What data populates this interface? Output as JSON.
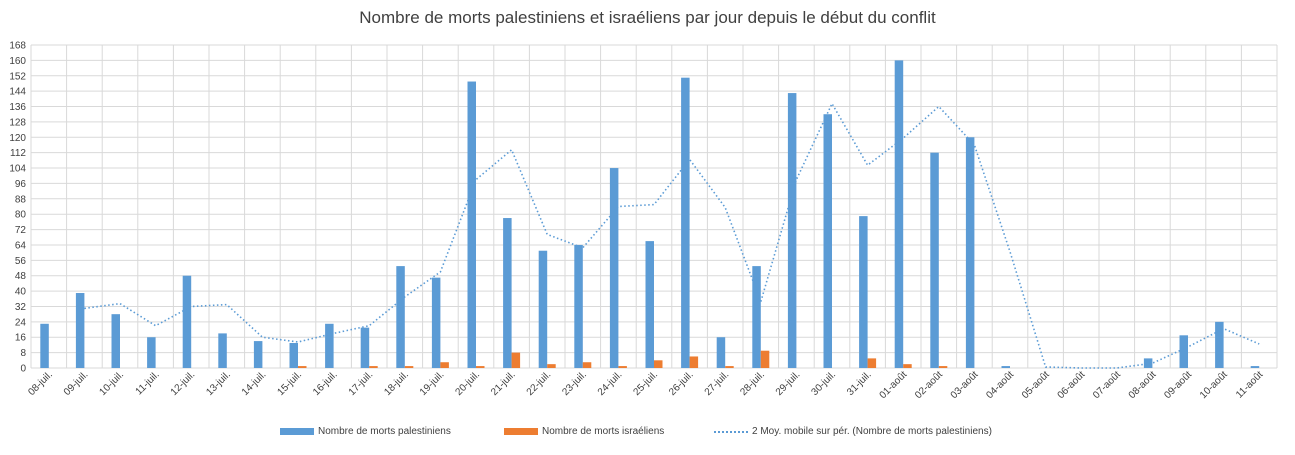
{
  "chart_data": {
    "type": "bar",
    "title": "Nombre de morts palestiniens et israéliens par jour depuis le début du conflit",
    "categories": [
      "08-juil.",
      "09-juil.",
      "10-juil.",
      "11-juil.",
      "12-juil.",
      "13-juil.",
      "14-juil.",
      "15-juil.",
      "16-juil.",
      "17-juil.",
      "18-juil.",
      "19-juil.",
      "20-juil.",
      "21-juil.",
      "22-juil.",
      "23-juil.",
      "24-juil.",
      "25-juil.",
      "26-juil.",
      "27-juil.",
      "28-juil.",
      "29-juil.",
      "30-juil.",
      "31-juil.",
      "01-août",
      "02-août",
      "03-août",
      "04-août",
      "05-août",
      "06-août",
      "07-août",
      "08-août",
      "09-août",
      "10-août",
      "11-août"
    ],
    "series": [
      {
        "name": "Nombre de morts palestiniens",
        "color": "#5B9BD5",
        "values": [
          23,
          39,
          28,
          16,
          48,
          18,
          14,
          13,
          23,
          21,
          53,
          47,
          149,
          78,
          61,
          64,
          104,
          66,
          151,
          16,
          53,
          143,
          132,
          79,
          160,
          112,
          120,
          1,
          0,
          0,
          0,
          5,
          17,
          24,
          1
        ]
      },
      {
        "name": "Nombre de morts israéliens",
        "color": "#ED7D31",
        "values": [
          0,
          0,
          0,
          0,
          0,
          0,
          0,
          1,
          0,
          1,
          1,
          3,
          1,
          8,
          2,
          3,
          1,
          4,
          6,
          1,
          9,
          0,
          0,
          5,
          2,
          1,
          0,
          0,
          0,
          0,
          0,
          0,
          0,
          0,
          0
        ]
      },
      {
        "name": "2 Moy. mobile sur pér. (Nombre de morts palestiniens)",
        "color": "#5B9BD5",
        "style": "dotted",
        "values": [
          null,
          31,
          33.5,
          22,
          32,
          33,
          16,
          13.5,
          18,
          22,
          37,
          50,
          98,
          113.5,
          69.5,
          62.5,
          84,
          85,
          108.5,
          83.5,
          34.5,
          98,
          137.5,
          105.5,
          119.5,
          136,
          116,
          60.5,
          0.5,
          0,
          0,
          2.5,
          11,
          20.5,
          12.5
        ]
      }
    ],
    "ylim": [
      0,
      168
    ],
    "yticks": [
      "0",
      "8",
      "16",
      "24",
      "32",
      "40",
      "48",
      "56",
      "64",
      "72",
      "80",
      "88",
      "96",
      "104",
      "112",
      "120",
      "128",
      "136",
      "144",
      "152",
      "160",
      "168"
    ],
    "grid": true,
    "legend_position": "bottom"
  }
}
